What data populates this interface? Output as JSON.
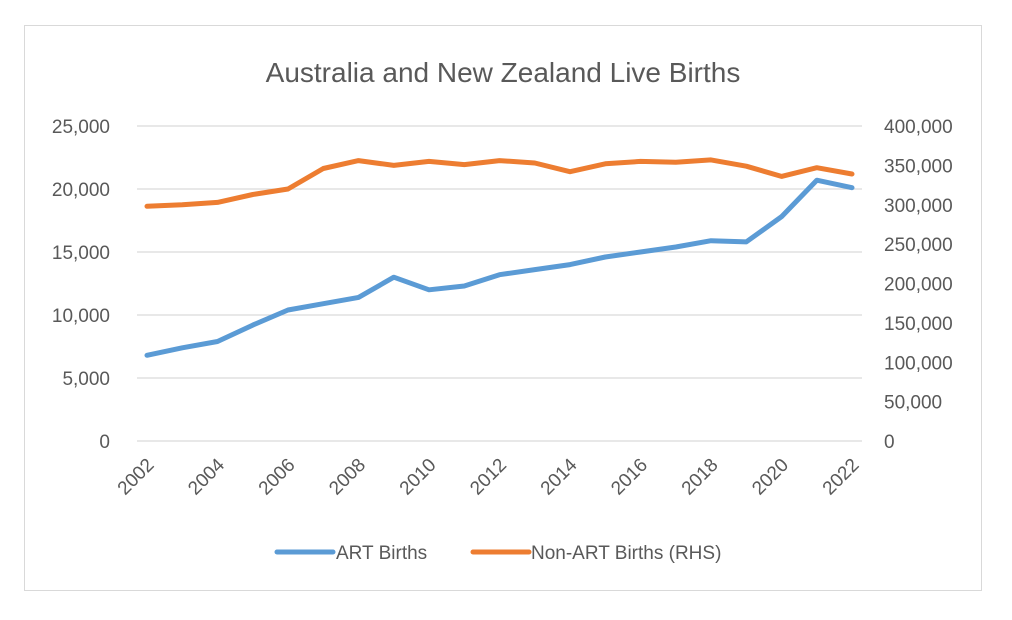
{
  "chart_data": {
    "type": "line",
    "title": "Australia and New Zealand Live Births",
    "x": [
      2002,
      2003,
      2004,
      2005,
      2006,
      2007,
      2008,
      2009,
      2010,
      2011,
      2012,
      2013,
      2014,
      2015,
      2016,
      2017,
      2018,
      2019,
      2020,
      2021,
      2022
    ],
    "x_tick_labels": [
      "2002",
      "2004",
      "2006",
      "2008",
      "2010",
      "2012",
      "2014",
      "2016",
      "2018",
      "2020",
      "2022"
    ],
    "y_left": {
      "ylim": [
        0,
        25000
      ],
      "tick_values": [
        0,
        5000,
        10000,
        15000,
        20000,
        25000
      ],
      "tick_labels": [
        "0",
        "5,000",
        "10,000",
        "15,000",
        "20,000",
        "25,000"
      ]
    },
    "y_right": {
      "ylim": [
        0,
        400000
      ],
      "tick_values": [
        0,
        50000,
        100000,
        150000,
        200000,
        250000,
        300000,
        350000,
        400000
      ],
      "tick_labels": [
        "0",
        "50,000",
        "100,000",
        "150,000",
        "200,000",
        "250,000",
        "300,000",
        "350,000",
        "400,000"
      ]
    },
    "grid": true,
    "legend_position": "bottom",
    "series": [
      {
        "name": "ART Births",
        "axis": "left",
        "color": "#5b9bd5",
        "values": [
          6800,
          7400,
          7900,
          9200,
          10400,
          10900,
          11400,
          13000,
          12000,
          12300,
          13200,
          13600,
          14000,
          14600,
          15000,
          15400,
          15900,
          15800,
          17800,
          20700,
          20100
        ]
      },
      {
        "name": "Non-ART Births (RHS)",
        "axis": "right",
        "color": "#ed7d31",
        "values": [
          298000,
          300000,
          303000,
          313000,
          320000,
          346000,
          356000,
          350000,
          355000,
          351000,
          356000,
          353000,
          342000,
          352000,
          355000,
          354000,
          357000,
          349000,
          336000,
          347000,
          339000
        ]
      }
    ]
  }
}
